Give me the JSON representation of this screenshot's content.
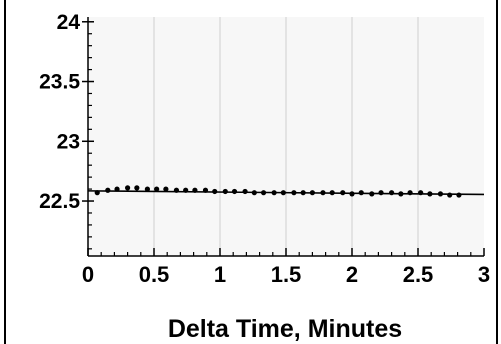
{
  "chart_data": {
    "type": "scatter",
    "xlabel": "Delta Time, Minutes",
    "ylabel": "",
    "xlim": [
      0,
      3
    ],
    "ylim": [
      22.04,
      24.04
    ],
    "x_ticks": [
      {
        "value": 0,
        "label": "0"
      },
      {
        "value": 0.5,
        "label": "0.5"
      },
      {
        "value": 1,
        "label": "1"
      },
      {
        "value": 1.5,
        "label": "1.5"
      },
      {
        "value": 2,
        "label": "2"
      },
      {
        "value": 2.5,
        "label": "2.5"
      },
      {
        "value": 3,
        "label": "3"
      }
    ],
    "y_ticks": [
      {
        "value": 22.5,
        "label": "22.5"
      },
      {
        "value": 23,
        "label": "23"
      },
      {
        "value": 23.5,
        "label": "23.5"
      },
      {
        "value": 24,
        "label": "24"
      }
    ],
    "grid": {
      "vertical": true,
      "horizontal": false
    },
    "colors": {
      "background": "#f7f7f7",
      "grid": "#cfcfcf",
      "points": "#000000",
      "fit_line": "#000000"
    },
    "series": [
      {
        "x": [
          0.07,
          0.15,
          0.22,
          0.3,
          0.37,
          0.45,
          0.52,
          0.59,
          0.67,
          0.74,
          0.81,
          0.89,
          0.96,
          1.04,
          1.11,
          1.19,
          1.26,
          1.33,
          1.41,
          1.48,
          1.56,
          1.63,
          1.7,
          1.78,
          1.85,
          1.93,
          2.0,
          2.07,
          2.15,
          2.22,
          2.3,
          2.37,
          2.44,
          2.52,
          2.59,
          2.67,
          2.74,
          2.81
        ],
        "y": [
          22.57,
          22.59,
          22.6,
          22.61,
          22.61,
          22.6,
          22.6,
          22.6,
          22.59,
          22.59,
          22.59,
          22.59,
          22.58,
          22.58,
          22.58,
          22.58,
          22.57,
          22.57,
          22.57,
          22.57,
          22.57,
          22.57,
          22.57,
          22.57,
          22.57,
          22.57,
          22.56,
          22.57,
          22.56,
          22.57,
          22.57,
          22.56,
          22.57,
          22.57,
          22.56,
          22.56,
          22.55,
          22.55
        ]
      }
    ],
    "fit_line": {
      "x": [
        0,
        3
      ],
      "y": [
        22.585,
        22.555
      ]
    }
  }
}
